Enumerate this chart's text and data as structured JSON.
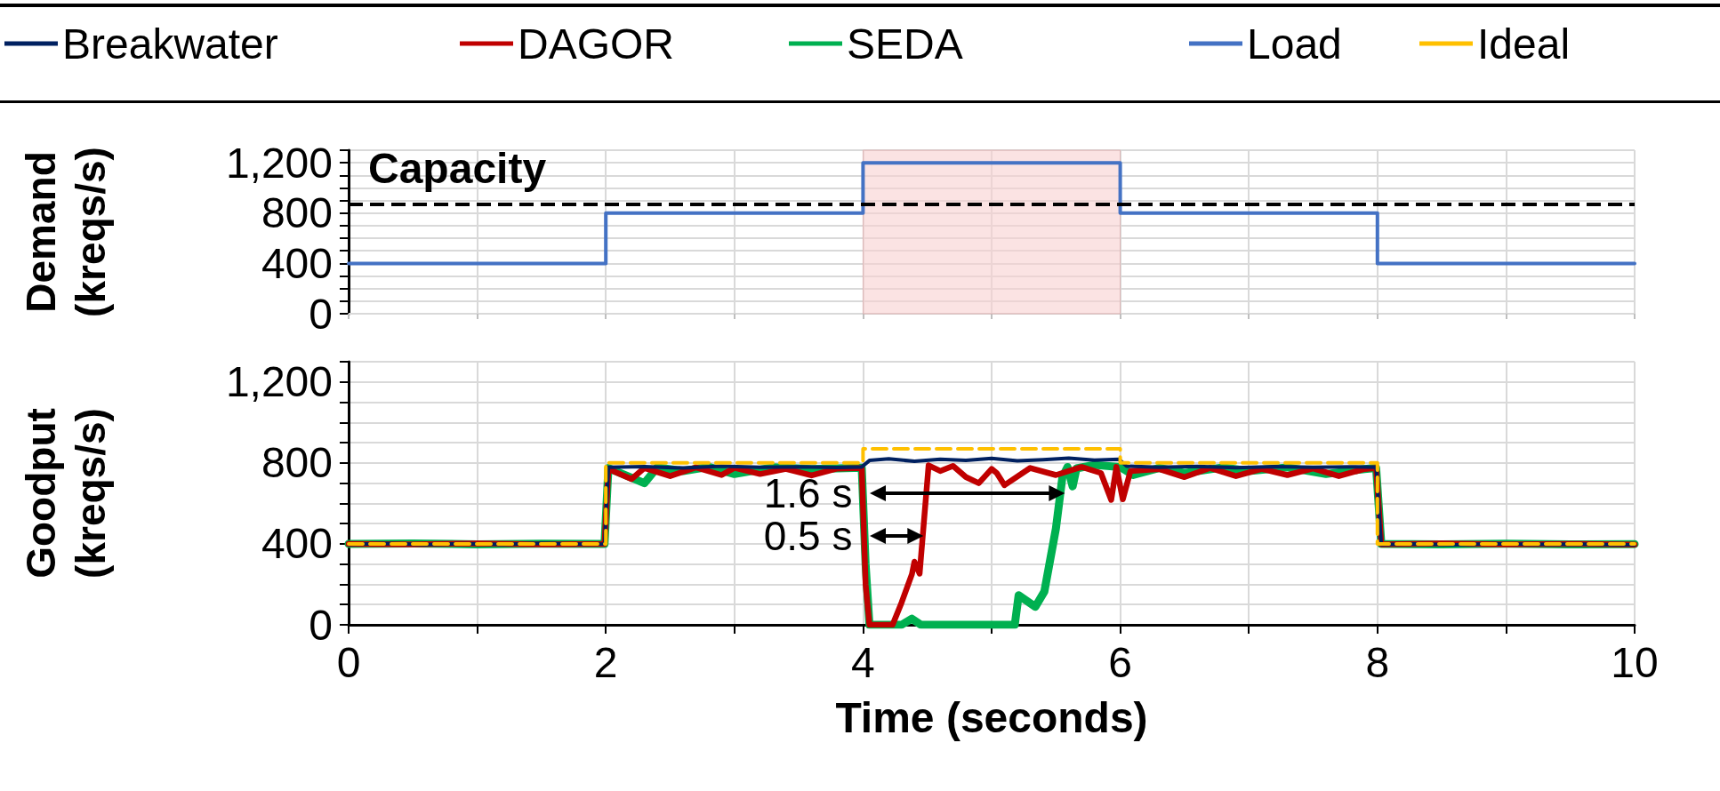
{
  "chart_data": [
    {
      "type": "step",
      "ylabel": "Demand (kreqs/s)",
      "xlim": [
        0,
        10
      ],
      "ylim": [
        0,
        1300
      ],
      "xticks": [
        0,
        {
          "value": 1,
          "label": null
        },
        2,
        {
          "value": 3,
          "label": null
        },
        4,
        {
          "value": 5,
          "label": null
        },
        6,
        {
          "value": 7,
          "label": null
        },
        8,
        {
          "value": 9,
          "label": null
        },
        10
      ],
      "yticks": [
        0,
        {
          "value": 100,
          "label": null
        },
        {
          "value": 200,
          "label": null
        },
        {
          "value": 300,
          "label": null
        },
        400,
        {
          "value": 500,
          "label": null
        },
        {
          "value": 600,
          "label": null
        },
        {
          "value": 700,
          "label": null
        },
        800,
        {
          "value": 900,
          "label": null
        },
        {
          "value": 1000,
          "label": null
        },
        {
          "value": 1100,
          "label": null
        },
        {
          "value": 1200,
          "label": "1,200"
        },
        {
          "value": 1300,
          "label": null
        }
      ],
      "tick_labels": "y",
      "grid": true,
      "legend": "top",
      "series": [
        {
          "name": "Load",
          "color": "#4472c4",
          "x": [
            0,
            2,
            4,
            6,
            8,
            10
          ],
          "values": [
            400,
            800,
            1200,
            800,
            400,
            400
          ]
        }
      ],
      "ref_lines": [
        {
          "axis": "y",
          "value": 870,
          "label": "Capacity",
          "color": "#000000",
          "line_style": "dashed"
        }
      ],
      "bands": [
        {
          "axis": "x",
          "from": 4,
          "to": 6,
          "color": "#f8d0d0"
        }
      ]
    },
    {
      "type": "line",
      "xlabel": "Time (seconds)",
      "ylabel": "Goodput (kreqs/s)",
      "xlim": [
        0,
        10
      ],
      "ylim": [
        0,
        1300
      ],
      "xticks": [
        0,
        {
          "value": 1,
          "label": null
        },
        2,
        {
          "value": 3,
          "label": null
        },
        4,
        {
          "value": 5,
          "label": null
        },
        6,
        {
          "value": 7,
          "label": null
        },
        8,
        {
          "value": 9,
          "label": null
        },
        10
      ],
      "yticks": [
        0,
        {
          "value": 100,
          "label": null
        },
        {
          "value": 200,
          "label": null
        },
        {
          "value": 300,
          "label": null
        },
        400,
        {
          "value": 500,
          "label": null
        },
        {
          "value": 600,
          "label": null
        },
        {
          "value": 700,
          "label": null
        },
        800,
        {
          "value": 900,
          "label": null
        },
        {
          "value": 1000,
          "label": null
        },
        {
          "value": 1100,
          "label": null
        },
        {
          "value": 1200,
          "label": "1,200"
        },
        {
          "value": 1300,
          "label": null
        }
      ],
      "grid": true,
      "legend": "top",
      "series": [
        {
          "name": "Breakwater",
          "color": "#002060",
          "x": [
            0,
            0.3,
            0.6,
            0.9,
            1.2,
            1.5,
            1.8,
            1.99,
            2.02,
            2.3,
            2.6,
            2.9,
            3.2,
            3.5,
            3.8,
            3.99,
            4.05,
            4.2,
            4.4,
            4.6,
            4.8,
            5.0,
            5.2,
            5.4,
            5.6,
            5.8,
            5.99,
            6.05,
            6.3,
            6.6,
            6.9,
            7.2,
            7.5,
            7.8,
            7.99,
            8.03,
            8.3,
            8.6,
            8.9,
            9.2,
            9.5,
            9.8,
            10
          ],
          "values": [
            398,
            402,
            396,
            401,
            397,
            403,
            399,
            400,
            778,
            782,
            775,
            784,
            779,
            781,
            777,
            780,
            812,
            820,
            808,
            818,
            812,
            822,
            810,
            816,
            824,
            814,
            818,
            784,
            778,
            783,
            776,
            782,
            779,
            781,
            778,
            396,
            400,
            395,
            401,
            397,
            399,
            396,
            395
          ]
        },
        {
          "name": "DAGOR",
          "color": "#c00000",
          "x": [
            0,
            0.5,
            1,
            1.5,
            1.99,
            2.02,
            2.2,
            2.3,
            2.5,
            2.7,
            2.9,
            3.0,
            3.2,
            3.4,
            3.6,
            3.8,
            3.99,
            4.02,
            4.05,
            4.23,
            4.3,
            4.38,
            4.4,
            4.44,
            4.51,
            4.6,
            4.7,
            4.8,
            4.9,
            5.0,
            5.04,
            5.1,
            5.3,
            5.5,
            5.7,
            5.85,
            5.93,
            5.97,
            6.02,
            6.08,
            6.3,
            6.5,
            6.7,
            6.9,
            7.1,
            7.3,
            7.5,
            7.7,
            7.9,
            7.99,
            8.03,
            8.5,
            9,
            9.5,
            10
          ],
          "values": [
            400,
            398,
            402,
            397,
            400,
            770,
            720,
            775,
            735,
            778,
            740,
            776,
            745,
            770,
            738,
            772,
            775,
            200,
            0,
            0,
            110,
            250,
            312,
            253,
            788,
            760,
            785,
            730,
            700,
            770,
            750,
            690,
            775,
            740,
            780,
            750,
            617,
            780,
            620,
            760,
            770,
            730,
            775,
            735,
            770,
            740,
            772,
            735,
            770,
            775,
            398,
            402,
            397,
            400,
            396
          ]
        },
        {
          "name": "SEDA",
          "color": "#00b050",
          "x": [
            0,
            0.5,
            1,
            1.5,
            1.99,
            2.02,
            2.3,
            2.4,
            2.6,
            2.8,
            3.0,
            3.3,
            3.6,
            3.99,
            4.02,
            4.05,
            4.3,
            4.38,
            4.45,
            5.18,
            5.21,
            5.34,
            5.41,
            5.5,
            5.55,
            5.59,
            5.63,
            5.66,
            5.8,
            6.0,
            6.1,
            6.3,
            6.5,
            6.8,
            7.0,
            7.3,
            7.6,
            7.9,
            7.99,
            8.03,
            8.5,
            9,
            9.5,
            10
          ],
          "values": [
            400,
            402,
            398,
            401,
            400,
            775,
            700,
            778,
            760,
            780,
            745,
            778,
            770,
            776,
            300,
            0,
            0,
            30,
            0,
            0,
            146,
            89,
            164,
            476,
            729,
            780,
            684,
            773,
            790,
            780,
            740,
            775,
            750,
            778,
            760,
            778,
            745,
            770,
            775,
            400,
            398,
            401,
            397,
            399
          ]
        },
        {
          "name": "Ideal",
          "type": "step",
          "color": "#ffc000",
          "line_style": "dashed",
          "x": [
            0,
            2,
            4,
            6,
            8,
            10
          ],
          "values": [
            400,
            800,
            870,
            800,
            400,
            400
          ]
        }
      ],
      "annotations": [
        {
          "text": "1.6 s",
          "x": 4,
          "y": 650
        },
        {
          "text": "0.5 s",
          "x": 4,
          "y": 440
        }
      ]
    }
  ]
}
